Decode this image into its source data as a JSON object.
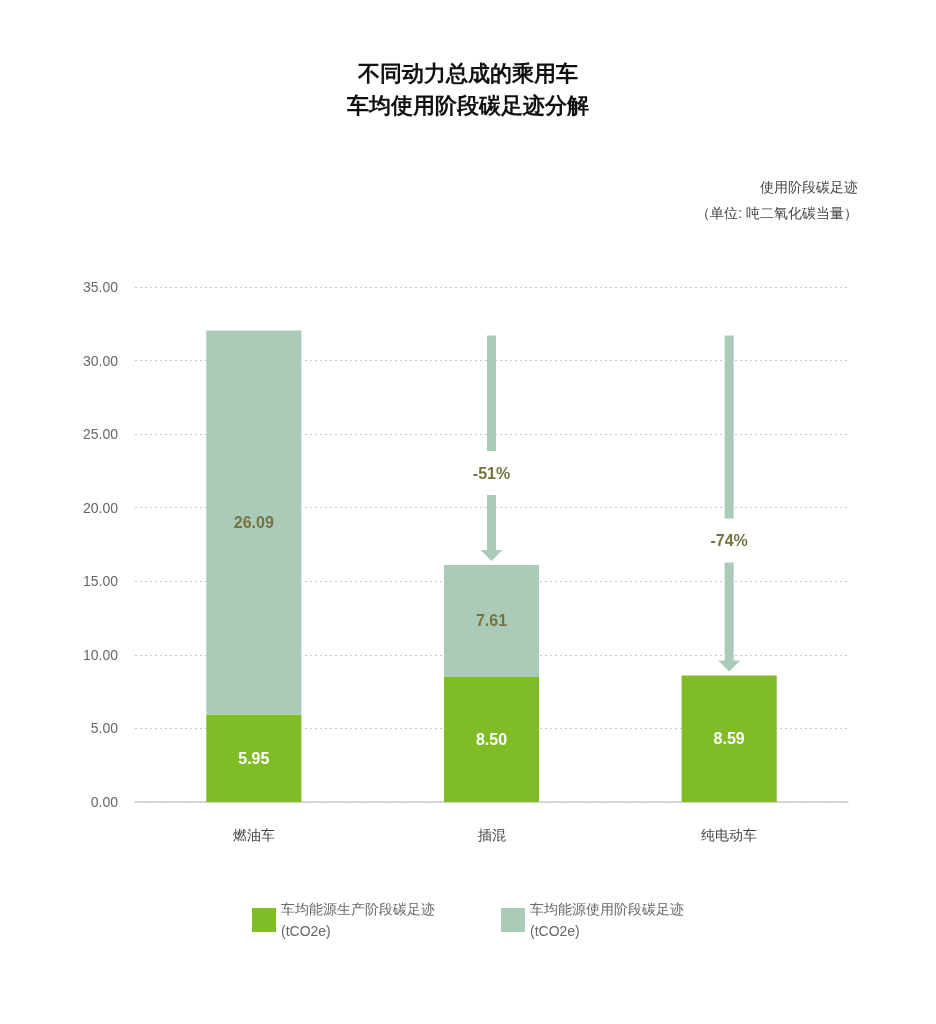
{
  "chart_data": {
    "type": "bar",
    "title": "不同动力总成的乘用车车均使用阶段碳足迹分解",
    "ylabel": "使用阶段碳足迹（单位: 吨二氧化碳当量）",
    "annotations": [
      "-51%",
      "-74%"
    ],
    "categories": [
      "燃油车",
      "插混",
      "纯电动车"
    ],
    "series": [
      {
        "name": "车均能源生产阶段碳足迹 (tCO2e)",
        "color": "#80bc26",
        "values": [
          5.95,
          8.5,
          8.59
        ],
        "value_labels": [
          "5.95",
          "8.50",
          "8.59"
        ]
      },
      {
        "name": "车均能源使用阶段碳足迹 (tCO2e)",
        "color": "#a9cbb8",
        "values": [
          26.09,
          7.61,
          null
        ],
        "value_labels": [
          "26.09",
          "7.61",
          null
        ]
      }
    ],
    "stacked": true,
    "ylim": [
      0,
      35
    ],
    "yticks": [
      {
        "value": 0,
        "label": "0.00"
      },
      {
        "value": 5,
        "label": "5.00"
      },
      {
        "value": 10,
        "label": "10.00"
      },
      {
        "value": 15,
        "label": "15.00"
      },
      {
        "value": 20,
        "label": "20.00"
      },
      {
        "value": 25,
        "label": "25.00"
      },
      {
        "value": 30,
        "label": "30.00"
      },
      {
        "value": 35,
        "label": "35.00"
      }
    ],
    "grid": "y",
    "legend": "bottom"
  }
}
